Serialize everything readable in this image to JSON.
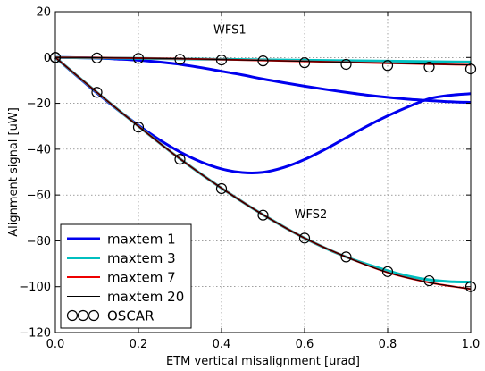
{
  "chart_data": {
    "type": "line",
    "xlabel": "ETM vertical misalignment [urad]",
    "ylabel": "Alignment signal [uW]",
    "xlim": [
      0.0,
      1.0
    ],
    "ylim": [
      -120,
      20
    ],
    "grid": true,
    "legend_placement": "bottom-left",
    "x_ticks": [
      "0.0",
      "0.2",
      "0.4",
      "0.6",
      "0.8",
      "1.0"
    ],
    "y_ticks": [
      "20",
      "0",
      "−20",
      "−40",
      "−60",
      "−80",
      "−100",
      "−120"
    ],
    "annotations": [
      {
        "text": "WFS1",
        "x": 0.42,
        "y": 10.5
      },
      {
        "text": "WFS2",
        "x": 0.615,
        "y": -70
      }
    ],
    "series": [
      {
        "name": "maxtem 1",
        "color": "#0000ee",
        "width": 3,
        "curves": [
          {
            "x": [
              0,
              0.05,
              0.1,
              0.15,
              0.2,
              0.25,
              0.3,
              0.35,
              0.4,
              0.45,
              0.5,
              0.55,
              0.6,
              0.65,
              0.7,
              0.75,
              0.8,
              0.85,
              0.9,
              0.95,
              1.0
            ],
            "y": [
              0,
              -0.1,
              -0.3,
              -0.7,
              -1.2,
              -2.0,
              -3.0,
              -4.4,
              -6.0,
              -7.6,
              -9.4,
              -11.0,
              -12.5,
              -13.9,
              -15.2,
              -16.4,
              -17.4,
              -18.2,
              -18.8,
              -19.3,
              -19.6
            ]
          },
          {
            "x": [
              0,
              0.05,
              0.1,
              0.15,
              0.2,
              0.25,
              0.3,
              0.35,
              0.4,
              0.45,
              0.5,
              0.55,
              0.6,
              0.65,
              0.7,
              0.75,
              0.8,
              0.85,
              0.9,
              0.95,
              1.0
            ],
            "y": [
              0,
              -7.8,
              -15.5,
              -22.8,
              -29.6,
              -35.8,
              -41.2,
              -45.5,
              -48.6,
              -50.2,
              -50.1,
              -48.0,
              -44.5,
              -40.0,
              -35.0,
              -30.0,
              -25.5,
              -21.5,
              -18.0,
              -16.5,
              -15.8
            ]
          }
        ]
      },
      {
        "name": "maxtem 3",
        "color": "#00bfbf",
        "width": 3,
        "curves": [
          {
            "x": [
              0,
              0.1,
              0.2,
              0.3,
              0.4,
              0.5,
              0.6,
              0.7,
              0.8,
              0.9,
              1.0
            ],
            "y": [
              0,
              -0.2,
              -0.4,
              -0.6,
              -0.8,
              -1.0,
              -1.2,
              -1.4,
              -1.6,
              -1.8,
              -2.0
            ]
          },
          {
            "x": [
              0,
              0.1,
              0.2,
              0.3,
              0.4,
              0.5,
              0.6,
              0.7,
              0.8,
              0.85,
              0.9,
              0.95,
              1.0
            ],
            "y": [
              0,
              -15.2,
              -30.0,
              -44.2,
              -57.0,
              -68.6,
              -78.8,
              -87.0,
              -93.0,
              -95.4,
              -97.0,
              -97.8,
              -98.0
            ]
          }
        ]
      },
      {
        "name": "maxtem 7",
        "color": "#ee0000",
        "width": 2,
        "curves": [
          {
            "x": [
              0,
              0.1,
              0.2,
              0.3,
              0.4,
              0.5,
              0.6,
              0.7,
              0.8,
              0.9,
              1.0
            ],
            "y": [
              0,
              -0.1,
              -0.3,
              -0.5,
              -0.9,
              -1.3,
              -1.7,
              -2.1,
              -2.5,
              -2.9,
              -3.2
            ]
          },
          {
            "x": [
              0,
              0.1,
              0.2,
              0.3,
              0.4,
              0.5,
              0.6,
              0.7,
              0.8,
              0.9,
              1.0
            ],
            "y": [
              0,
              -15.2,
              -30.0,
              -44.2,
              -57.0,
              -68.6,
              -78.8,
              -87.0,
              -93.8,
              -98.2,
              -101.0
            ]
          }
        ]
      },
      {
        "name": "maxtem 20",
        "color": "#000000",
        "width": 1,
        "curves": [
          {
            "x": [
              0,
              0.1,
              0.2,
              0.3,
              0.4,
              0.5,
              0.6,
              0.7,
              0.8,
              0.9,
              1.0
            ],
            "y": [
              0,
              -0.1,
              -0.3,
              -0.5,
              -0.9,
              -1.3,
              -1.7,
              -2.1,
              -2.5,
              -2.9,
              -3.2
            ]
          },
          {
            "x": [
              0,
              0.1,
              0.2,
              0.3,
              0.4,
              0.5,
              0.6,
              0.7,
              0.8,
              0.9,
              1.0
            ],
            "y": [
              0,
              -15.2,
              -30.0,
              -44.2,
              -57.0,
              -68.6,
              -78.8,
              -87.0,
              -93.8,
              -98.2,
              -101.0
            ]
          }
        ]
      }
    ],
    "markers": {
      "name": "OSCAR",
      "symbol": "open-circle",
      "color": "#000000",
      "curves": [
        {
          "x": [
            0,
            0.1,
            0.2,
            0.3,
            0.4,
            0.5,
            0.6,
            0.7,
            0.8,
            0.9,
            1.0
          ],
          "y": [
            0,
            -0.2,
            -0.4,
            -0.8,
            -1.1,
            -1.5,
            -2.3,
            -3.0,
            -3.5,
            -4.2,
            -5.0
          ]
        },
        {
          "x": [
            0,
            0.1,
            0.2,
            0.3,
            0.4,
            0.5,
            0.6,
            0.7,
            0.8,
            0.9,
            1.0
          ],
          "y": [
            0,
            -15.2,
            -30.4,
            -44.4,
            -57.2,
            -68.8,
            -78.8,
            -87.0,
            -93.4,
            -97.4,
            -100.0
          ]
        }
      ]
    }
  }
}
